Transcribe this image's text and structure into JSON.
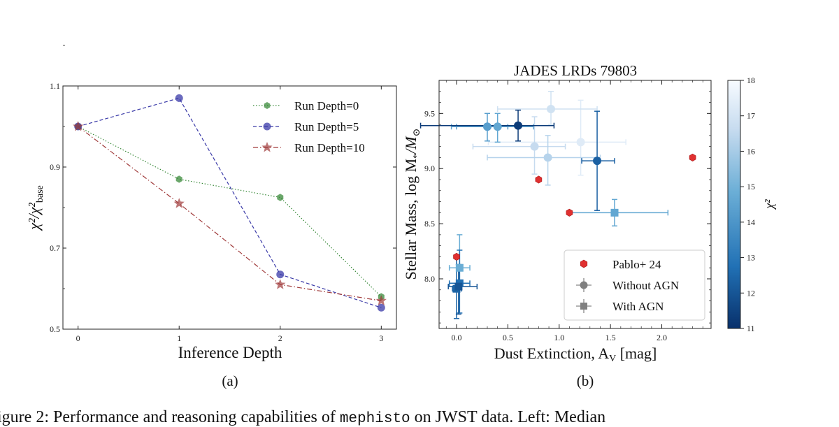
{
  "chart_data": [
    {
      "type": "line",
      "panel_label": "(a)",
      "xlabel": "Inference Depth",
      "ylabel_main": "χ²/χ²",
      "ylabel_sub": "base",
      "x": [
        0,
        1,
        2,
        3
      ],
      "xticks": [
        "0",
        "1",
        "2",
        "3"
      ],
      "yticks": [
        "0.5",
        "0.7",
        "0.9",
        "1.1"
      ],
      "xlim": [
        -0.15,
        3.15
      ],
      "ylim": [
        0.5,
        1.1
      ],
      "legend_position": "top-right",
      "series": [
        {
          "name": "Run Depth=0",
          "values": [
            1.0,
            0.87,
            0.825,
            0.58
          ],
          "color": "#3a8a3a",
          "marker": "hexagon",
          "linestyle": "dotted"
        },
        {
          "name": "Run Depth=5",
          "values": [
            1.0,
            1.07,
            0.635,
            0.553
          ],
          "color": "#3a3aa8",
          "marker": "circle",
          "linestyle": "dashed"
        },
        {
          "name": "Run Depth=10",
          "values": [
            1.0,
            0.81,
            0.61,
            0.57
          ],
          "color": "#a03a3a",
          "marker": "star",
          "linestyle": "dashdot"
        }
      ]
    },
    {
      "type": "scatter",
      "title": "JADES LRDs 79803",
      "panel_label": "(b)",
      "xlabel": "Dust Extinction, A",
      "xlabel_sub": "V",
      "xlabel_unit": " [mag]",
      "ylabel": "Stellar Mass, log M",
      "ylabel_sub1": "*",
      "ylabel_rest": "/M",
      "ylabel_sub2": "⊙",
      "xlim": [
        -0.17,
        2.48
      ],
      "ylim": [
        7.55,
        9.8
      ],
      "xticks": [
        "0.0",
        "0.5",
        "1.0",
        "1.5",
        "2.0"
      ],
      "yticks": [
        "8.0",
        "8.5",
        "9.0",
        "9.5"
      ],
      "colorbar": {
        "label": "χ²",
        "min": 11,
        "max": 18,
        "ticks": [
          "11",
          "12",
          "13",
          "14",
          "15",
          "16",
          "17",
          "18"
        ],
        "colormap": "Blues_r"
      },
      "legend_position": "bottom-right",
      "legend": [
        "Pablo+ 24",
        "Without AGN",
        "With AGN"
      ],
      "pablo_points": [
        {
          "x": 0.0,
          "y": 8.2
        },
        {
          "x": 0.8,
          "y": 8.9
        },
        {
          "x": 1.1,
          "y": 8.6
        },
        {
          "x": 2.3,
          "y": 9.1
        }
      ],
      "without_agn": [
        {
          "x": 0.3,
          "y": 9.38,
          "xerr": [
            0.3,
            0.2
          ],
          "yerr": [
            0.13,
            0.12
          ],
          "chi2": 14.3
        },
        {
          "x": 0.4,
          "y": 9.38,
          "xerr": [
            0.45,
            0.35
          ],
          "yerr": [
            0.14,
            0.12
          ],
          "chi2": 14.6
        },
        {
          "x": 0.6,
          "y": 9.39,
          "xerr": [
            0.95,
            0.35
          ],
          "yerr": [
            0.14,
            0.14
          ],
          "chi2": 11.3
        },
        {
          "x": 0.76,
          "y": 9.2,
          "xerr": [
            0.6,
            0.3
          ],
          "yerr": [
            0.25,
            0.27
          ],
          "chi2": 16.6
        },
        {
          "x": 0.89,
          "y": 9.1,
          "xerr": [
            0.59,
            0.51
          ],
          "yerr": [
            0.25,
            0.2
          ],
          "chi2": 16.3
        },
        {
          "x": 0.92,
          "y": 9.54,
          "xerr": [
            0.52,
            0.45
          ],
          "yerr": [
            0.14,
            0.16
          ],
          "chi2": 16.9
        },
        {
          "x": 1.21,
          "y": 9.24,
          "xerr": [
            0.9,
            0.44
          ],
          "yerr": [
            0.3,
            0.38
          ],
          "chi2": 17.3
        },
        {
          "x": 1.37,
          "y": 9.07,
          "xerr": [
            0.15,
            0.17
          ],
          "yerr": [
            0.45,
            0.45
          ],
          "chi2": 12.3
        }
      ],
      "with_agn": [
        {
          "x": 1.54,
          "y": 8.6,
          "xerr": [
            0.45,
            0.52
          ],
          "yerr": [
            0.12,
            0.12
          ],
          "chi2": 14.6
        },
        {
          "x": 0.03,
          "y": 8.1,
          "xerr": [
            0.1,
            0.1
          ],
          "yerr": [
            0.15,
            0.3
          ],
          "chi2": 14.8
        },
        {
          "x": 0.03,
          "y": 7.96,
          "xerr": [
            0.1,
            0.1
          ],
          "yerr": [
            0.27,
            0.3
          ],
          "chi2": 12.7
        },
        {
          "x": 0.02,
          "y": 7.93,
          "xerr": [
            0.1,
            0.18
          ],
          "yerr": [
            0.25,
            0.2
          ],
          "chi2": 12.0
        },
        {
          "x": 0.0,
          "y": 7.91,
          "xerr": [
            0.04,
            0.05
          ],
          "yerr": [
            0.27,
            0.28
          ],
          "chi2": 12.4
        }
      ]
    }
  ],
  "caption": {
    "prefix": "igure 2:  Performance and reasoning capabilities of ",
    "code": "mephisto",
    "suffix": " on JWST data.  Left:  Median"
  }
}
